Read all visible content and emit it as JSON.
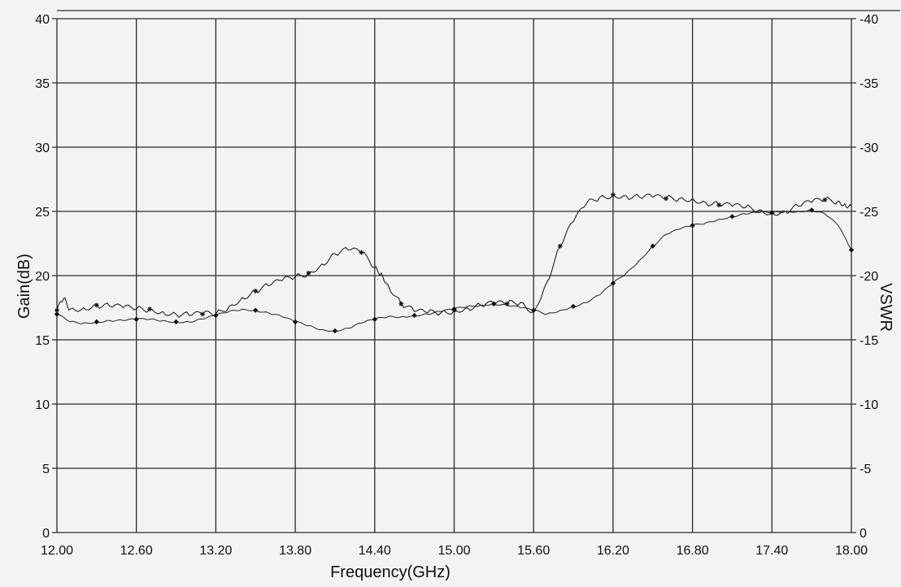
{
  "chart_data": {
    "type": "line",
    "xlabel": "Frequency(GHz)",
    "ylabel": "Gain(dB)",
    "y2label": "VSWR",
    "xlim": [
      12.0,
      18.0
    ],
    "ylim": [
      0,
      40
    ],
    "y2lim": [
      0,
      -40
    ],
    "x_ticks": [
      "12.00",
      "12.60",
      "13.20",
      "13.80",
      "14.40",
      "15.00",
      "15.60",
      "16.20",
      "16.80",
      "17.40",
      "18.00"
    ],
    "y_ticks": [
      "0",
      "5",
      "10",
      "15",
      "20",
      "25",
      "30",
      "35",
      "40"
    ],
    "y2_ticks": [
      "0",
      "-5",
      "-10",
      "-15",
      "-20",
      "-25",
      "-30",
      "-35",
      "-40"
    ],
    "grid": true,
    "series": [
      {
        "marker": "asterisk",
        "color": "#222222",
        "x": [
          12.0,
          12.05,
          12.1,
          12.2,
          12.3,
          12.4,
          12.5,
          12.6,
          12.7,
          12.8,
          12.9,
          13.0,
          13.1,
          13.2,
          13.3,
          13.4,
          13.5,
          13.6,
          13.7,
          13.8,
          13.9,
          14.0,
          14.1,
          14.2,
          14.3,
          14.4,
          14.45,
          14.5,
          14.6,
          14.7,
          14.8,
          14.9,
          15.0,
          15.1,
          15.2,
          15.3,
          15.4,
          15.5,
          15.6,
          15.7,
          15.8,
          15.9,
          16.0,
          16.1,
          16.2,
          16.3,
          16.4,
          16.5,
          16.6,
          16.7,
          16.8,
          16.9,
          17.0,
          17.1,
          17.2,
          17.3,
          17.4,
          17.5,
          17.6,
          17.7,
          17.8,
          17.9,
          17.95,
          18.0
        ],
        "y": [
          17.3,
          18.2,
          17.4,
          17.5,
          17.7,
          17.6,
          17.5,
          17.4,
          17.4,
          17.2,
          17.0,
          16.9,
          17.0,
          17.0,
          17.6,
          18.3,
          18.8,
          19.2,
          19.6,
          19.9,
          20.2,
          20.9,
          21.7,
          22.0,
          21.8,
          20.6,
          20.2,
          19.3,
          17.8,
          17.2,
          17.1,
          17.1,
          17.3,
          17.5,
          17.7,
          17.8,
          17.8,
          17.9,
          17.2,
          19.5,
          22.3,
          24.2,
          25.6,
          26.1,
          26.3,
          26.2,
          26.1,
          26.1,
          26.0,
          26.0,
          26.0,
          25.7,
          25.5,
          25.4,
          25.3,
          25.1,
          24.9,
          25.0,
          25.4,
          25.7,
          25.9,
          25.8,
          25.6,
          25.4
        ]
      },
      {
        "marker": "diamond",
        "color": "#222222",
        "x": [
          12.0,
          12.1,
          12.2,
          12.3,
          12.4,
          12.5,
          12.6,
          12.7,
          12.8,
          12.9,
          13.0,
          13.1,
          13.2,
          13.3,
          13.4,
          13.5,
          13.6,
          13.7,
          13.8,
          13.9,
          14.0,
          14.1,
          14.2,
          14.3,
          14.4,
          14.5,
          14.6,
          14.7,
          14.8,
          14.9,
          15.0,
          15.1,
          15.2,
          15.3,
          15.4,
          15.5,
          15.6,
          15.7,
          15.8,
          15.9,
          16.0,
          16.1,
          16.2,
          16.3,
          16.4,
          16.5,
          16.6,
          16.7,
          16.8,
          16.9,
          17.0,
          17.1,
          17.2,
          17.3,
          17.4,
          17.5,
          17.6,
          17.7,
          17.8,
          17.9,
          18.0
        ],
        "y": [
          17.0,
          16.4,
          16.3,
          16.4,
          16.5,
          16.5,
          16.6,
          16.6,
          16.5,
          16.4,
          16.4,
          16.6,
          16.9,
          17.2,
          17.4,
          17.3,
          17.1,
          16.8,
          16.4,
          16.1,
          15.8,
          15.7,
          15.9,
          16.3,
          16.6,
          16.8,
          16.8,
          16.9,
          17.0,
          17.2,
          17.4,
          17.6,
          17.7,
          17.8,
          17.7,
          17.5,
          17.3,
          17.0,
          17.3,
          17.6,
          17.9,
          18.5,
          19.4,
          20.2,
          21.2,
          22.3,
          23.2,
          23.6,
          23.9,
          24.1,
          24.4,
          24.6,
          24.8,
          24.9,
          24.9,
          25.0,
          25.0,
          25.1,
          24.8,
          23.9,
          22.0
        ]
      }
    ]
  }
}
